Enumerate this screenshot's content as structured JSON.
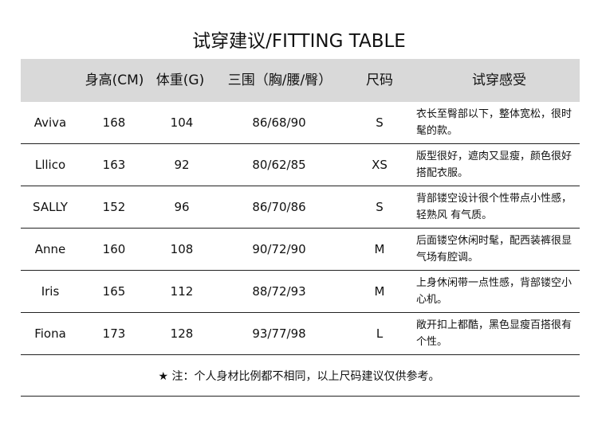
{
  "title": "试穿建议/FITTING TABLE",
  "headers": {
    "name": "",
    "height": "身高(CM)",
    "weight": "体重(G)",
    "measure": "三围（胸/腰/臀）",
    "size": "尺码",
    "comment": "试穿感受"
  },
  "rows": [
    {
      "name": "Aviva",
      "height": "168",
      "weight": "104",
      "measure": "86/68/90",
      "size": "S",
      "comment": "衣长至臀部以下，整体宽松，很时髦的款。"
    },
    {
      "name": "Lllico",
      "height": "163",
      "weight": "92",
      "measure": "80/62/85",
      "size": "XS",
      "comment": "版型很好，遮肉又显瘦，颜色很好搭配衣服。"
    },
    {
      "name": "SALLY",
      "height": "152",
      "weight": "96",
      "measure": "86/70/86",
      "size": "S",
      "comment": "背部镂空设计很个性带点小性感，轻熟风 有气质。"
    },
    {
      "name": "Anne",
      "height": "160",
      "weight": "108",
      "measure": "90/72/90",
      "size": "M",
      "comment": "后面镂空休闲时髦，配西装裤很显气场有腔调。"
    },
    {
      "name": "Iris",
      "height": "165",
      "weight": "112",
      "measure": "88/72/93",
      "size": "M",
      "comment": "上身休闲带一点性感，背部镂空小心机。"
    },
    {
      "name": "Fiona",
      "height": "173",
      "weight": "128",
      "measure": "93/77/98",
      "size": "L",
      "comment": "敞开扣上都酷，黑色显瘦百搭很有个性。"
    }
  ],
  "footnote": "★ 注：个人身材比例都不相同，以上尺码建议仅供参考。",
  "colors": {
    "header_bg": "#d9d9d9"
  }
}
